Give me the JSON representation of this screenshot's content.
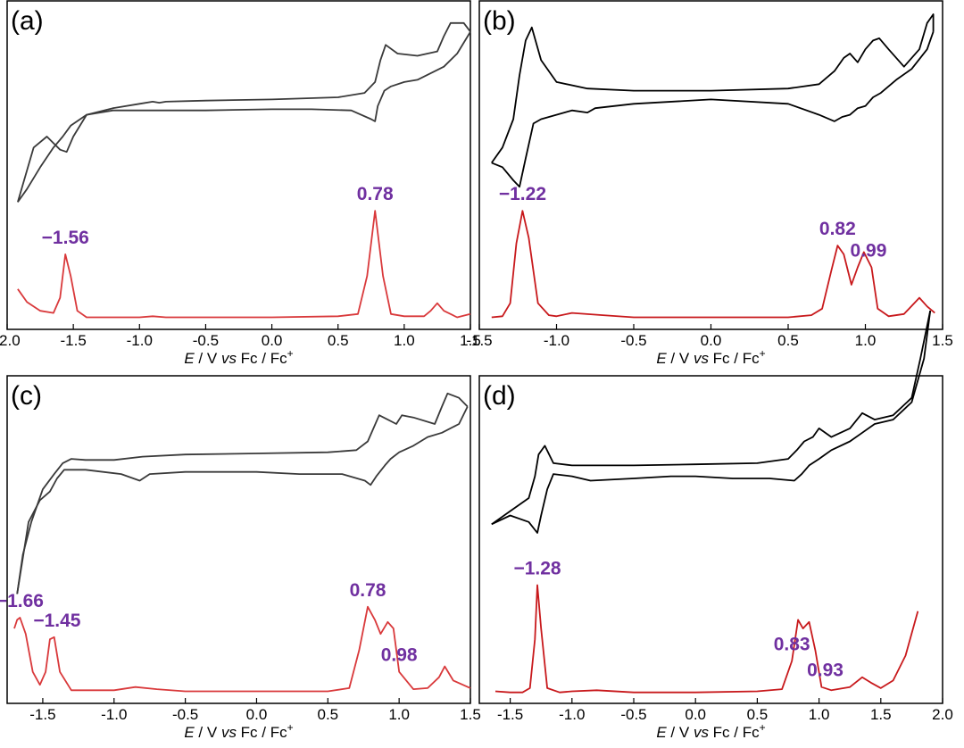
{
  "colors": {
    "cv": "#3a3a3a",
    "cv_dark": "#000000",
    "dpv": "#d9393b",
    "peak_label": "#7030a0"
  },
  "chart_data": [
    {
      "type": "line",
      "panel": "(a)",
      "xlabel_italic": "E",
      "xlabel_rest": " / V ",
      "xlabel_vs": "vs",
      "xlabel_tail": " Fc / Fc",
      "xlabel_sup": "+",
      "xlim": [
        -2.0,
        1.5
      ],
      "xticks": [
        "-2.0",
        "-1.5",
        "-1.0",
        "-0.5",
        "0.0",
        "0.5",
        "1.0",
        "1.5"
      ],
      "peak_labels": [
        {
          "text": "−1.56",
          "x": -1.56
        },
        {
          "text": "0.78",
          "x": 0.78
        }
      ],
      "series": [
        {
          "kind": "cv_forward",
          "color": "#3a3a3a",
          "x": [
            -1.92,
            -1.85,
            -1.75,
            -1.65,
            -1.58,
            -1.52,
            -1.4,
            -1.2,
            -1.0,
            -0.9,
            -0.85,
            -0.8,
            -0.5,
            0.0,
            0.5,
            0.7,
            0.78,
            0.82,
            0.86,
            0.95,
            1.1,
            1.25,
            1.3,
            1.35,
            1.45,
            1.5
          ],
          "y": [
            0.8,
            0.74,
            0.64,
            0.55,
            0.5,
            0.45,
            0.4,
            0.37,
            0.35,
            0.34,
            0.345,
            0.34,
            0.335,
            0.33,
            0.32,
            0.3,
            0.25,
            0.15,
            0.08,
            0.12,
            0.13,
            0.11,
            0.04,
            -0.02,
            -0.02,
            0.02
          ]
        },
        {
          "kind": "cv_reverse",
          "color": "#3a3a3a",
          "x": [
            1.5,
            1.4,
            1.3,
            1.2,
            1.1,
            1.0,
            0.9,
            0.85,
            0.8,
            0.78,
            0.75,
            0.6,
            0.3,
            0.0,
            -0.5,
            -0.9,
            -1.2,
            -1.4,
            -1.5,
            -1.55,
            -1.6,
            -1.7,
            -1.8,
            -1.92
          ],
          "y": [
            0.02,
            0.12,
            0.18,
            0.21,
            0.24,
            0.25,
            0.27,
            0.29,
            0.36,
            0.43,
            0.42,
            0.38,
            0.375,
            0.375,
            0.38,
            0.38,
            0.38,
            0.4,
            0.5,
            0.57,
            0.56,
            0.5,
            0.55,
            0.8
          ]
        },
        {
          "kind": "dpv",
          "color": "#d9393b",
          "x": [
            -1.92,
            -1.85,
            -1.75,
            -1.65,
            -1.6,
            -1.56,
            -1.52,
            -1.47,
            -1.4,
            -1.0,
            -0.9,
            -0.8,
            -0.5,
            0.0,
            0.5,
            0.65,
            0.72,
            0.78,
            0.84,
            0.9,
            1.0,
            1.15,
            1.2,
            1.25,
            1.3,
            1.4,
            1.5
          ],
          "y": [
            0.28,
            0.16,
            0.08,
            0.06,
            0.2,
            0.6,
            0.4,
            0.08,
            0.02,
            0.02,
            0.03,
            0.02,
            0.02,
            0.02,
            0.03,
            0.05,
            0.4,
            1.0,
            0.4,
            0.05,
            0.03,
            0.03,
            0.08,
            0.15,
            0.08,
            0.02,
            0.05
          ]
        }
      ]
    },
    {
      "type": "line",
      "panel": "(b)",
      "xlabel_italic": "E",
      "xlabel_rest": " / V ",
      "xlabel_vs": "vs",
      "xlabel_tail": " Fc / Fc",
      "xlabel_sup": "+",
      "xlim": [
        -1.5,
        1.5
      ],
      "xticks": [
        "-1.5",
        "-1.0",
        "-0.5",
        "0.0",
        "0.5",
        "1.0",
        "1.5"
      ],
      "peak_labels": [
        {
          "text": "−1.22",
          "x": -1.22
        },
        {
          "text": "0.82",
          "x": 0.82
        },
        {
          "text": "0.99",
          "x": 1.02
        }
      ],
      "series": [
        {
          "kind": "cv_forward",
          "color": "#000000",
          "x": [
            -1.42,
            -1.35,
            -1.28,
            -1.24,
            -1.2,
            -1.16,
            -1.1,
            -1.0,
            -0.8,
            -0.5,
            0.0,
            0.5,
            0.7,
            0.8,
            0.86,
            0.9,
            0.95,
            1.0,
            1.05,
            1.09,
            1.15,
            1.25,
            1.35,
            1.4,
            1.44,
            1.44
          ],
          "y": [
            0.62,
            0.55,
            0.42,
            0.22,
            0.06,
            0.0,
            0.15,
            0.25,
            0.28,
            0.29,
            0.29,
            0.28,
            0.26,
            0.2,
            0.14,
            0.12,
            0.16,
            0.1,
            0.06,
            0.05,
            0.1,
            0.18,
            0.1,
            -0.02,
            -0.06,
            0.02
          ]
        },
        {
          "kind": "cv_reverse",
          "color": "#000000",
          "x": [
            1.44,
            1.4,
            1.3,
            1.2,
            1.1,
            1.05,
            1.0,
            0.95,
            0.9,
            0.85,
            0.8,
            0.7,
            0.5,
            0.0,
            -0.5,
            -0.75,
            -0.8,
            -0.9,
            -1.1,
            -1.15,
            -1.2,
            -1.24,
            -1.28,
            -1.35,
            -1.42
          ],
          "y": [
            0.02,
            0.1,
            0.19,
            0.24,
            0.3,
            0.32,
            0.36,
            0.37,
            0.4,
            0.41,
            0.43,
            0.4,
            0.35,
            0.33,
            0.35,
            0.37,
            0.39,
            0.38,
            0.42,
            0.44,
            0.6,
            0.73,
            0.7,
            0.64,
            0.62
          ]
        },
        {
          "kind": "dpv",
          "color": "#c8191c",
          "x": [
            -1.42,
            -1.35,
            -1.3,
            -1.26,
            -1.22,
            -1.18,
            -1.12,
            -1.05,
            -1.0,
            -0.9,
            -0.7,
            -0.5,
            0.0,
            0.5,
            0.65,
            0.72,
            0.78,
            0.82,
            0.86,
            0.91,
            0.95,
            0.99,
            1.04,
            1.08,
            1.15,
            1.25,
            1.35,
            1.4,
            1.45
          ],
          "y": [
            0.02,
            0.03,
            0.15,
            0.7,
            1.0,
            0.75,
            0.15,
            0.04,
            0.03,
            0.06,
            0.04,
            0.02,
            0.02,
            0.02,
            0.04,
            0.1,
            0.45,
            0.68,
            0.6,
            0.32,
            0.48,
            0.62,
            0.48,
            0.1,
            0.03,
            0.05,
            0.2,
            0.12,
            0.06
          ]
        }
      ]
    },
    {
      "type": "line",
      "panel": "(c)",
      "xlabel_italic": "E",
      "xlabel_rest": " / V ",
      "xlabel_vs": "vs",
      "xlabel_tail": " Fc / Fc",
      "xlabel_sup": "+",
      "xlim": [
        -1.75,
        1.5
      ],
      "xticks": [
        "-1.5",
        "-1.0",
        "-0.5",
        "0.0",
        "0.5",
        "1.0",
        "1.5"
      ],
      "peak_labels": [
        {
          "text": "−1.66",
          "x": -1.66
        },
        {
          "text": "−1.45",
          "x": -1.4
        },
        {
          "text": "0.78",
          "x": 0.78
        },
        {
          "text": "0.98",
          "x": 1.0
        }
      ],
      "series": [
        {
          "kind": "cv_forward",
          "color": "#3a3a3a",
          "x": [
            -1.68,
            -1.64,
            -1.58,
            -1.5,
            -1.42,
            -1.36,
            -1.3,
            -1.2,
            -1.0,
            -0.8,
            -0.5,
            0.0,
            0.5,
            0.7,
            0.78,
            0.82,
            0.86,
            0.92,
            0.98,
            1.02,
            1.1,
            1.25,
            1.3,
            1.34,
            1.42,
            1.48
          ],
          "y": [
            0.88,
            0.7,
            0.55,
            0.4,
            0.33,
            0.28,
            0.26,
            0.265,
            0.265,
            0.25,
            0.24,
            0.235,
            0.23,
            0.22,
            0.18,
            0.12,
            0.06,
            0.08,
            0.1,
            0.06,
            0.07,
            0.1,
            0.02,
            -0.04,
            -0.02,
            0.02
          ]
        },
        {
          "kind": "cv_reverse",
          "color": "#3a3a3a",
          "x": [
            1.48,
            1.42,
            1.3,
            1.2,
            1.1,
            1.0,
            0.94,
            0.9,
            0.84,
            0.8,
            0.76,
            0.6,
            0.3,
            0.0,
            -0.5,
            -0.75,
            -0.82,
            -0.95,
            -1.2,
            -1.35,
            -1.4,
            -1.45,
            -1.52,
            -1.6,
            -1.68
          ],
          "y": [
            0.02,
            0.1,
            0.14,
            0.16,
            0.2,
            0.23,
            0.26,
            0.29,
            0.34,
            0.38,
            0.36,
            0.33,
            0.33,
            0.32,
            0.32,
            0.33,
            0.36,
            0.33,
            0.31,
            0.31,
            0.35,
            0.41,
            0.45,
            0.55,
            0.88
          ]
        },
        {
          "kind": "dpv",
          "color": "#d9393b",
          "x": [
            -1.7,
            -1.68,
            -1.66,
            -1.62,
            -1.57,
            -1.52,
            -1.48,
            -1.45,
            -1.42,
            -1.38,
            -1.3,
            -1.0,
            -0.85,
            -0.7,
            -0.5,
            0.0,
            0.5,
            0.65,
            0.72,
            0.78,
            0.83,
            0.87,
            0.92,
            0.96,
            1.0,
            1.1,
            1.2,
            1.28,
            1.32,
            1.38,
            1.5
          ],
          "y": [
            0.6,
            0.68,
            0.7,
            0.55,
            0.2,
            0.08,
            0.2,
            0.5,
            0.52,
            0.2,
            0.03,
            0.03,
            0.06,
            0.04,
            0.02,
            0.02,
            0.02,
            0.05,
            0.4,
            0.8,
            0.68,
            0.55,
            0.66,
            0.6,
            0.2,
            0.04,
            0.05,
            0.15,
            0.25,
            0.12,
            0.05
          ]
        }
      ]
    },
    {
      "type": "line",
      "panel": "(d)",
      "xlabel_italic": "E",
      "xlabel_rest": " / V ",
      "xlabel_vs": "vs",
      "xlabel_tail": " Fc / Fc",
      "xlabel_sup": "+",
      "xlim": [
        -1.75,
        2.0
      ],
      "xticks": [
        "-1.5",
        "-1.0",
        "-0.5",
        "0.0",
        "0.5",
        "1.0",
        "1.5",
        "2.0"
      ],
      "peak_labels": [
        {
          "text": "−1.28",
          "x": -1.28
        },
        {
          "text": "0.83",
          "x": 0.78
        },
        {
          "text": "0.93",
          "x": 1.05
        }
      ],
      "series": [
        {
          "kind": "cv_forward",
          "color": "#000000",
          "x": [
            -1.65,
            -1.5,
            -1.35,
            -1.3,
            -1.27,
            -1.22,
            -1.15,
            -1.0,
            -0.5,
            0.0,
            0.5,
            0.75,
            0.82,
            0.88,
            0.95,
            1.0,
            1.1,
            1.25,
            1.35,
            1.45,
            1.6,
            1.75,
            1.82,
            1.9
          ],
          "y": [
            0.56,
            0.5,
            0.44,
            0.34,
            0.24,
            0.2,
            0.28,
            0.29,
            0.29,
            0.285,
            0.28,
            0.26,
            0.22,
            0.18,
            0.16,
            0.12,
            0.16,
            0.12,
            0.05,
            0.08,
            0.06,
            -0.02,
            -0.2,
            -0.42
          ]
        },
        {
          "kind": "cv_reverse",
          "color": "#000000",
          "x": [
            1.9,
            1.85,
            1.75,
            1.6,
            1.45,
            1.35,
            1.25,
            1.1,
            1.0,
            0.92,
            0.86,
            0.8,
            0.6,
            0.3,
            0.0,
            -0.2,
            -0.5,
            -0.85,
            -1.0,
            -1.15,
            -1.2,
            -1.25,
            -1.28,
            -1.35,
            -1.5,
            -1.65
          ],
          "y": [
            -0.42,
            -0.2,
            0.0,
            0.08,
            0.1,
            0.14,
            0.18,
            0.22,
            0.26,
            0.29,
            0.33,
            0.36,
            0.35,
            0.35,
            0.34,
            0.34,
            0.35,
            0.36,
            0.34,
            0.33,
            0.4,
            0.52,
            0.6,
            0.55,
            0.52,
            0.56
          ]
        },
        {
          "kind": "dpv",
          "color": "#c8191c",
          "x": [
            -1.62,
            -1.5,
            -1.4,
            -1.34,
            -1.3,
            -1.28,
            -1.25,
            -1.2,
            -1.1,
            -1.0,
            -0.8,
            -0.5,
            0.0,
            0.5,
            0.7,
            0.78,
            0.83,
            0.87,
            0.92,
            0.97,
            1.02,
            1.1,
            1.25,
            1.35,
            1.42,
            1.5,
            1.6,
            1.7,
            1.8
          ],
          "y": [
            0.02,
            0.01,
            0.01,
            0.05,
            0.5,
            1.0,
            0.6,
            0.05,
            0.01,
            0.02,
            0.03,
            0.01,
            0.01,
            0.02,
            0.04,
            0.3,
            0.68,
            0.6,
            0.66,
            0.4,
            0.06,
            0.03,
            0.06,
            0.15,
            0.1,
            0.05,
            0.12,
            0.35,
            0.76
          ]
        }
      ]
    }
  ]
}
